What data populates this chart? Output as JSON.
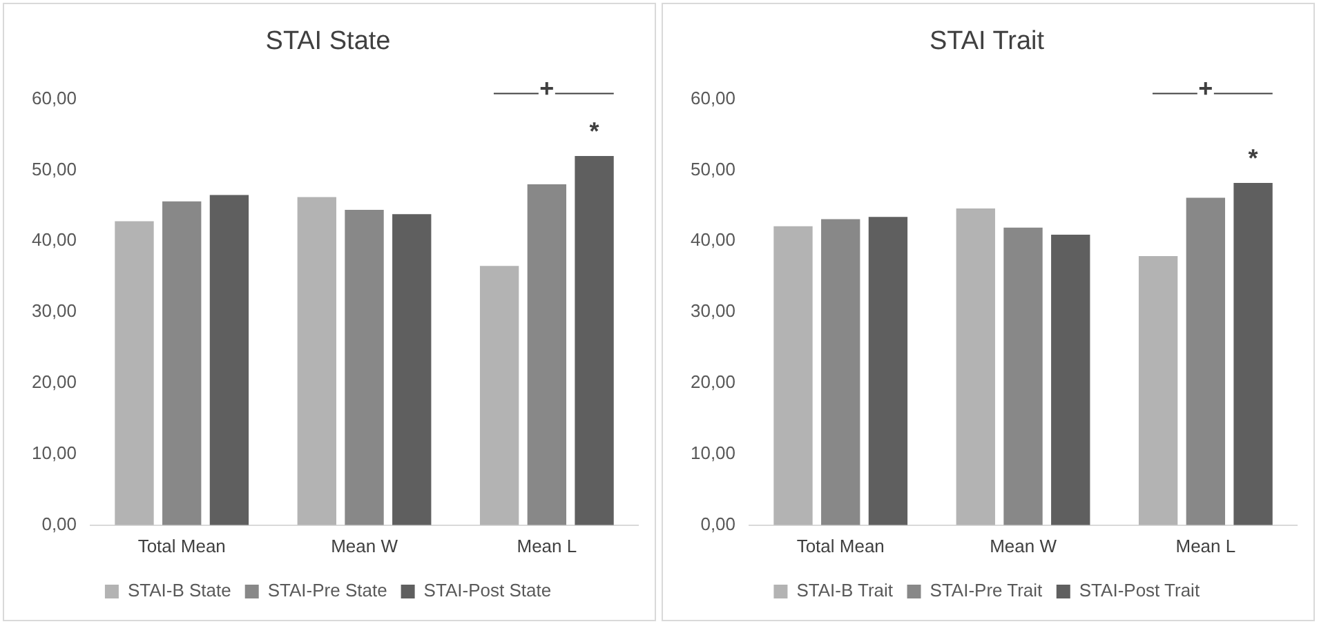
{
  "chart_data": [
    {
      "type": "bar",
      "title": "STAI State",
      "categories": [
        "Total Mean",
        "Mean W",
        "Mean L"
      ],
      "series": [
        {
          "name": "STAI-B State",
          "color": "#b3b3b3",
          "values": [
            42.8,
            46.2,
            36.5
          ]
        },
        {
          "name": "STAI-Pre State",
          "color": "#888888",
          "values": [
            45.6,
            44.4,
            48.0
          ]
        },
        {
          "name": "STAI-Post State",
          "color": "#5f5f5f",
          "values": [
            46.5,
            43.8,
            52.0
          ]
        }
      ],
      "ylim": [
        0,
        60
      ],
      "yticks": [
        {
          "value": 0,
          "label": "0,00"
        },
        {
          "value": 10,
          "label": "10,00"
        },
        {
          "value": 20,
          "label": "20,00"
        },
        {
          "value": 30,
          "label": "30,00"
        },
        {
          "value": 40,
          "label": "40,00"
        },
        {
          "value": 50,
          "label": "50,00"
        },
        {
          "value": 60,
          "label": "60,00"
        }
      ],
      "grid": false,
      "legend": "bottom",
      "annotations": [
        "+",
        "*"
      ]
    },
    {
      "type": "bar",
      "title": "STAI Trait",
      "categories": [
        "Total Mean",
        "Mean W",
        "Mean L"
      ],
      "series": [
        {
          "name": "STAI-B Trait",
          "color": "#b3b3b3",
          "values": [
            42.1,
            44.6,
            37.9
          ]
        },
        {
          "name": "STAI-Pre Trait",
          "color": "#888888",
          "values": [
            43.1,
            41.9,
            46.1
          ]
        },
        {
          "name": "STAI-Post Trait",
          "color": "#5f5f5f",
          "values": [
            43.4,
            40.9,
            48.2
          ]
        }
      ],
      "ylim": [
        0,
        60
      ],
      "yticks": [
        {
          "value": 0,
          "label": "0,00"
        },
        {
          "value": 10,
          "label": "10,00"
        },
        {
          "value": 20,
          "label": "20,00"
        },
        {
          "value": 30,
          "label": "30,00"
        },
        {
          "value": 40,
          "label": "40,00"
        },
        {
          "value": 50,
          "label": "50,00"
        },
        {
          "value": 60,
          "label": "60,00"
        }
      ],
      "grid": false,
      "legend": "bottom",
      "annotations": [
        "+",
        "*"
      ]
    }
  ]
}
